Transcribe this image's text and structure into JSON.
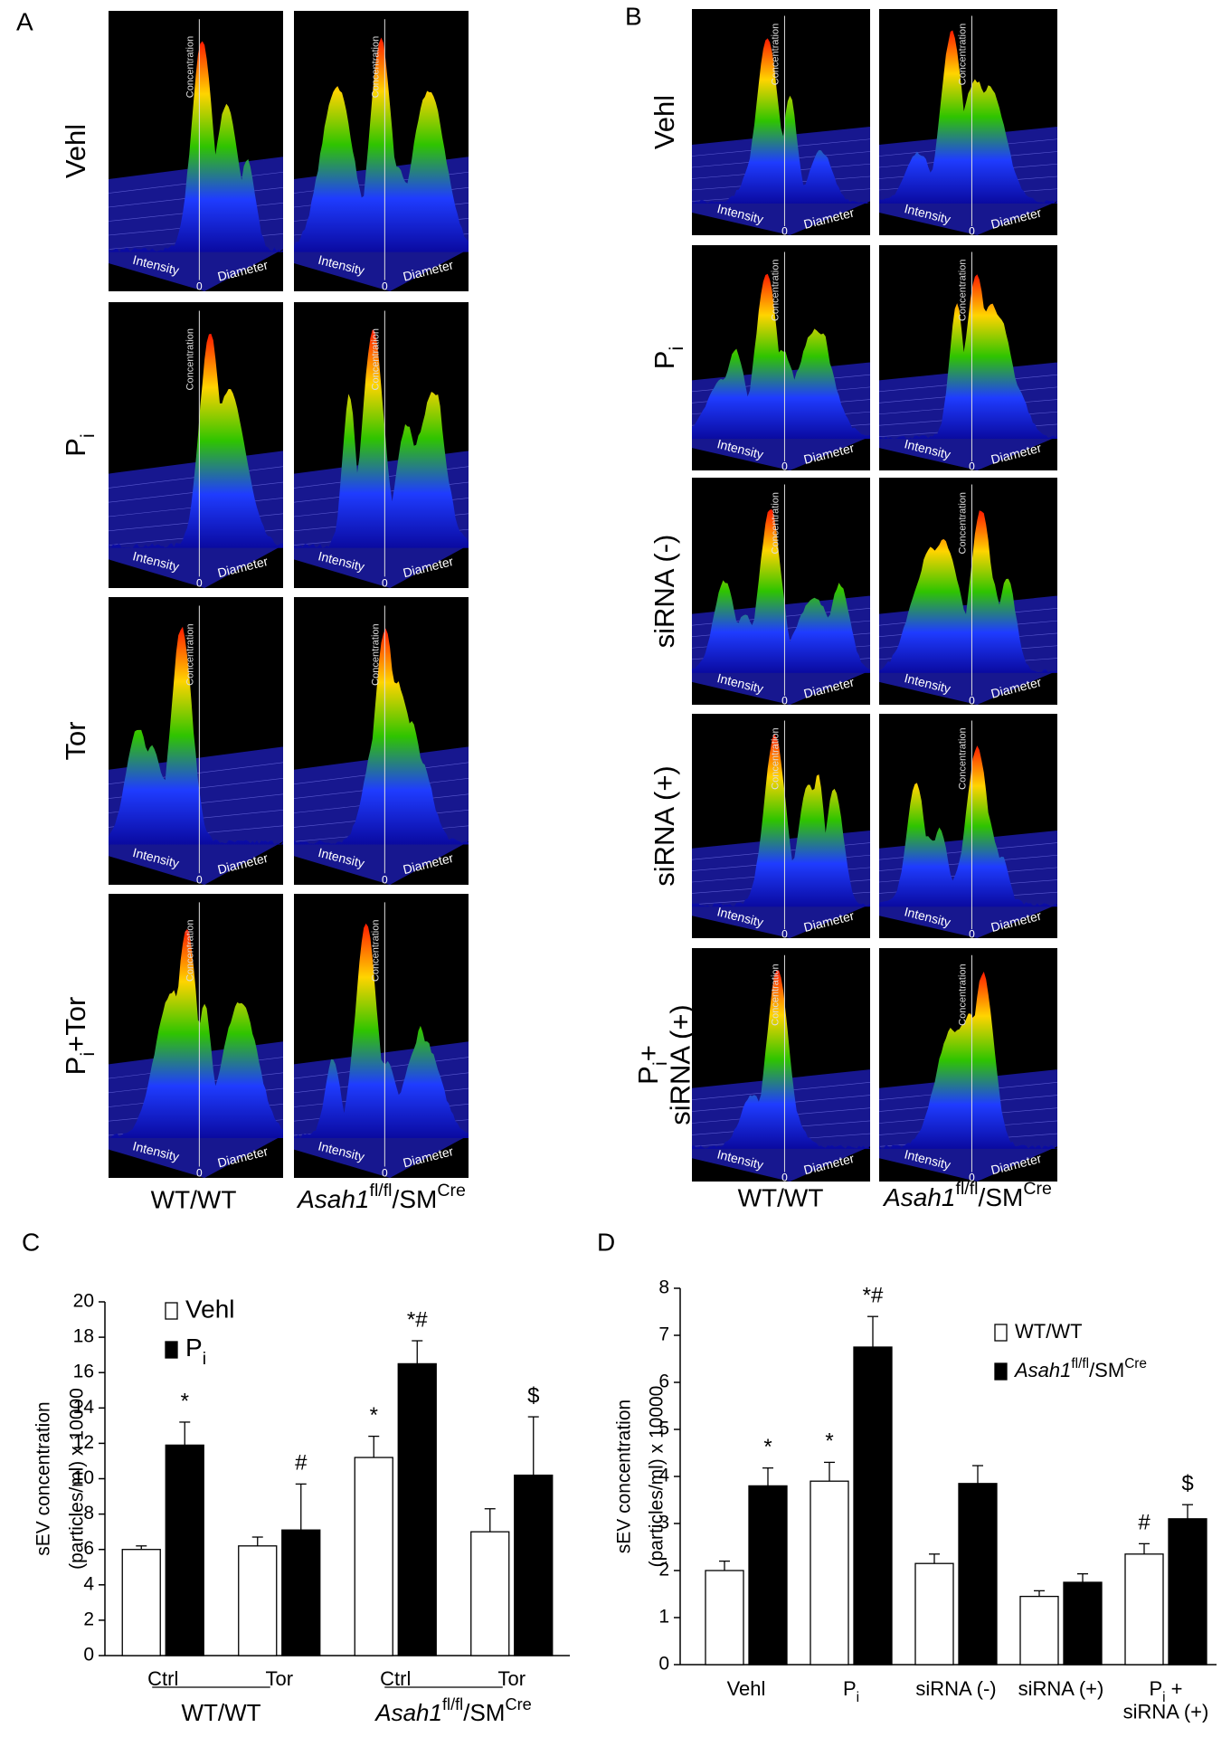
{
  "figure": {
    "panel_a": {
      "label": "A",
      "rows": [
        "Vehl",
        [
          {
            "text": "P"
          },
          {
            "text": "i",
            "style": "sub"
          }
        ],
        "Tor",
        [
          {
            "text": "P"
          },
          {
            "text": "i",
            "style": "sub"
          },
          {
            "text": "+Tor"
          }
        ]
      ],
      "columns": [
        "WT/WT",
        [
          {
            "text": "Asah1",
            "style": "italic"
          },
          {
            "text": "fl/fl",
            "style": "sup"
          },
          {
            "text": "/SM"
          },
          {
            "text": "Cre",
            "style": "sup"
          }
        ]
      ]
    },
    "panel_b": {
      "label": "B",
      "rows": [
        "Vehl",
        [
          {
            "text": "P"
          },
          {
            "text": "i",
            "style": "sub"
          }
        ],
        "siRNA (-)",
        "siRNA (+)",
        [
          {
            "text": "P"
          },
          {
            "text": "i",
            "style": "sub"
          },
          {
            "text": "+"
          },
          {
            "text": "siRNA (+)",
            "style": "newline"
          }
        ]
      ],
      "columns": [
        "WT/WT",
        [
          {
            "text": "Asah1",
            "style": "italic"
          },
          {
            "text": "fl/fl",
            "style": "sup"
          },
          {
            "text": "/SM"
          },
          {
            "text": "Cre",
            "style": "sup"
          }
        ]
      ]
    },
    "plot_axes": {
      "z": "Concentration",
      "x": "Intensity",
      "y": "Diameter",
      "origin": "0"
    }
  },
  "chart_data": [
    {
      "type": "bar",
      "label": "C",
      "y_label": [
        "sEV concentration",
        "(particles/ml)  x 10000"
      ],
      "categories": [
        "Ctrl",
        "Tor",
        "Ctrl",
        "Tor"
      ],
      "groups": [
        "WT/WT",
        [
          {
            "text": "Asah1",
            "style": "italic"
          },
          {
            "text": "fl/fl",
            "style": "sup"
          },
          {
            "text": "/SM"
          },
          {
            "text": "Cre",
            "style": "sup"
          }
        ]
      ],
      "series": [
        {
          "name": "Vehl",
          "color": "#ffffff",
          "values": [
            6.0,
            6.2,
            11.2,
            7.0
          ],
          "errors": [
            0.2,
            0.5,
            1.2,
            1.3
          ],
          "annotations": [
            null,
            null,
            "*",
            null
          ]
        },
        {
          "name": [
            {
              "text": "P"
            },
            {
              "text": "i",
              "style": "sub"
            }
          ],
          "color": "#000000",
          "values": [
            11.9,
            7.1,
            16.5,
            10.2
          ],
          "errors": [
            1.3,
            2.6,
            1.3,
            3.3
          ],
          "annotations": [
            "*",
            "#",
            "*#",
            "$"
          ]
        }
      ],
      "ylim": [
        0,
        20
      ],
      "yticks": [
        0,
        2,
        4,
        6,
        8,
        10,
        12,
        14,
        16,
        18,
        20
      ],
      "legend": "upper center"
    },
    {
      "type": "bar",
      "label": "D",
      "y_label": [
        "sEV concentration",
        "(particles/ml) x 10000"
      ],
      "categories": [
        "Vehl",
        [
          {
            "text": "P"
          },
          {
            "text": "i",
            "style": "sub"
          }
        ],
        "siRNA (-)",
        "siRNA (+)",
        [
          {
            "text": "P"
          },
          {
            "text": "i",
            "style": "sub"
          },
          {
            "text": " +"
          },
          {
            "text": "siRNA (+)",
            "style": "newline"
          }
        ]
      ],
      "series": [
        {
          "name": "WT/WT",
          "color": "#ffffff",
          "values": [
            2.0,
            3.9,
            2.15,
            1.45,
            2.35
          ],
          "errors": [
            0.2,
            0.4,
            0.2,
            0.12,
            0.22
          ],
          "annotations": [
            null,
            "*",
            null,
            null,
            "#"
          ]
        },
        {
          "name": [
            {
              "text": "Asah1",
              "style": "italic"
            },
            {
              "text": "fl/fl",
              "style": "sup"
            },
            {
              "text": "/SM"
            },
            {
              "text": "Cre",
              "style": "sup"
            }
          ],
          "color": "#000000",
          "values": [
            3.8,
            6.75,
            3.85,
            1.75,
            3.1
          ],
          "errors": [
            0.38,
            0.65,
            0.38,
            0.18,
            0.3
          ],
          "annotations": [
            "*",
            "*#",
            null,
            null,
            "$"
          ]
        }
      ],
      "ylim": [
        0,
        8
      ],
      "yticks": [
        0,
        1,
        2,
        3,
        4,
        5,
        6,
        7,
        8
      ],
      "legend": "upper right"
    }
  ]
}
